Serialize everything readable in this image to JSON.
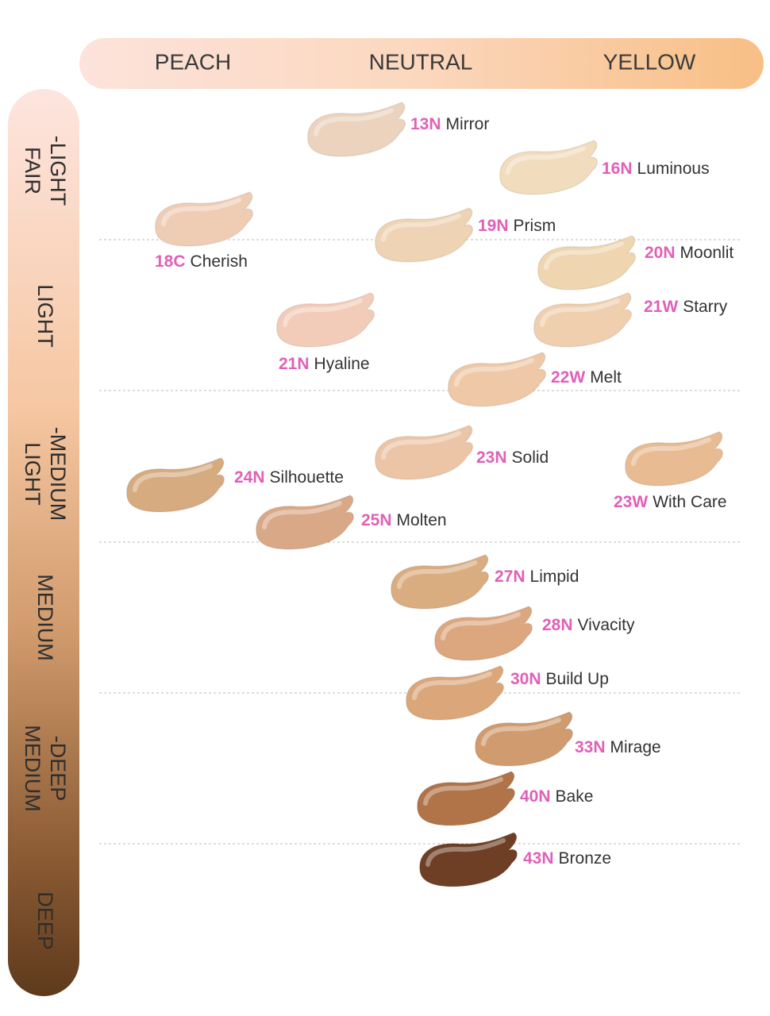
{
  "undertones": [
    "PEACH",
    "NEUTRAL",
    "YELLOW"
  ],
  "depths": [
    [
      "FAIR",
      "-LIGHT"
    ],
    [
      "LIGHT"
    ],
    [
      "LIGHT",
      "-MEDIUM"
    ],
    [
      "MEDIUM"
    ],
    [
      "MEDIUM",
      "-DEEP"
    ],
    [
      "DEEP"
    ]
  ],
  "shades": [
    {
      "code": "13N",
      "name": "Mirror",
      "color": "#ecd3bd"
    },
    {
      "code": "16N",
      "name": "Luminous",
      "color": "#f1dcbd"
    },
    {
      "code": "18C",
      "name": "Cherish",
      "color": "#efcdb5"
    },
    {
      "code": "19N",
      "name": "Prism",
      "color": "#eed3b4"
    },
    {
      "code": "20N",
      "name": "Moonlit",
      "color": "#efd6b0"
    },
    {
      "code": "21W",
      "name": "Starry",
      "color": "#f0cfaf"
    },
    {
      "code": "21N",
      "name": "Hyaline",
      "color": "#f3ccb9"
    },
    {
      "code": "22W",
      "name": "Melt",
      "color": "#efc8a7"
    },
    {
      "code": "23N",
      "name": "Solid",
      "color": "#ecc5a6"
    },
    {
      "code": "23W",
      "name": "With Care",
      "color": "#e8bb92"
    },
    {
      "code": "24N",
      "name": "Silhouette",
      "color": "#d7ab80"
    },
    {
      "code": "25N",
      "name": "Molten",
      "color": "#d9a887"
    },
    {
      "code": "27N",
      "name": "Limpid",
      "color": "#d9ad80"
    },
    {
      "code": "28N",
      "name": "Vivacity",
      "color": "#dca77f"
    },
    {
      "code": "30N",
      "name": "Build Up",
      "color": "#dba77a"
    },
    {
      "code": "33N",
      "name": "Mirage",
      "color": "#d09b6e"
    },
    {
      "code": "40N",
      "name": "Bake",
      "color": "#b07448"
    },
    {
      "code": "43N",
      "name": "Bronze",
      "color": "#6e3f25"
    }
  ]
}
